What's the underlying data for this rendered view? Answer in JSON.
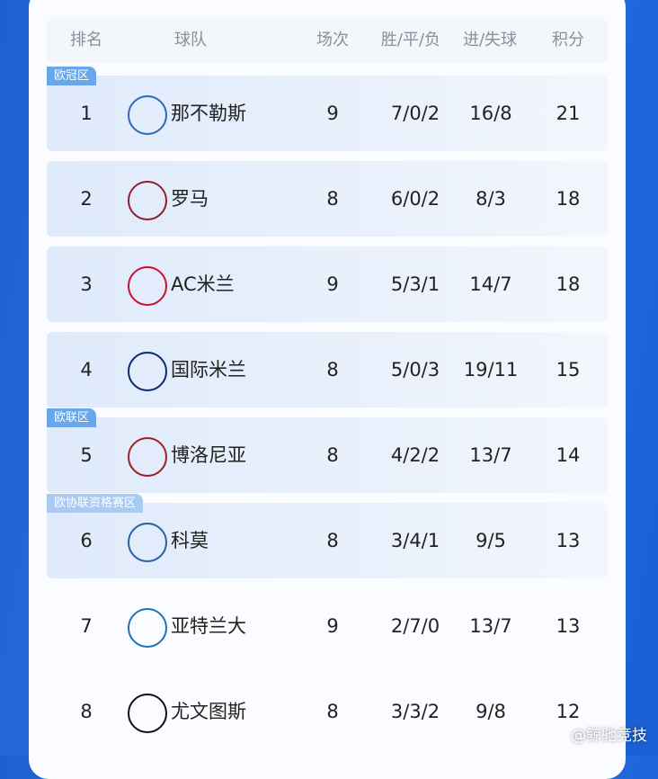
{
  "headers": [
    "排名",
    "球队",
    "场次",
    "胜/平/负",
    "进/失球",
    "积分"
  ],
  "rows": [
    {
      "rank": "1",
      "team": "那不勒斯",
      "played": "9",
      "wdl": "7/0/2",
      "goals": "16/8",
      "pts": "21",
      "zone": "欧冠区",
      "logo": "napoli-logo",
      "color": "#2a6ab8"
    },
    {
      "rank": "2",
      "team": "罗马",
      "played": "8",
      "wdl": "6/0/2",
      "goals": "8/3",
      "pts": "18",
      "logo": "roma-logo",
      "color": "#8e1f2f"
    },
    {
      "rank": "3",
      "team": "AC米兰",
      "played": "9",
      "wdl": "5/3/1",
      "goals": "14/7",
      "pts": "18",
      "logo": "ac-milan-logo",
      "color": "#c8102e"
    },
    {
      "rank": "4",
      "team": "国际米兰",
      "played": "8",
      "wdl": "5/0/3",
      "goals": "19/11",
      "pts": "15",
      "logo": "inter-logo",
      "color": "#0a2a6b"
    },
    {
      "rank": "5",
      "team": "博洛尼亚",
      "played": "8",
      "wdl": "4/2/2",
      "goals": "13/7",
      "pts": "14",
      "zone": "欧联区",
      "logo": "bologna-logo",
      "color": "#a21c26"
    },
    {
      "rank": "6",
      "team": "科莫",
      "played": "8",
      "wdl": "3/4/1",
      "goals": "9/5",
      "pts": "13",
      "zone": "欧协联资格赛区",
      "logo": "como-logo",
      "color": "#2b5f9e"
    },
    {
      "rank": "7",
      "team": "亚特兰大",
      "played": "9",
      "wdl": "2/7/0",
      "goals": "13/7",
      "pts": "13",
      "logo": "atalanta-logo",
      "color": "#1e71b8"
    },
    {
      "rank": "8",
      "team": "尤文图斯",
      "played": "8",
      "wdl": "3/3/2",
      "goals": "9/8",
      "pts": "12",
      "logo": "juventus-logo",
      "color": "#111111"
    }
  ],
  "watermark": "@鲸驰竞技"
}
